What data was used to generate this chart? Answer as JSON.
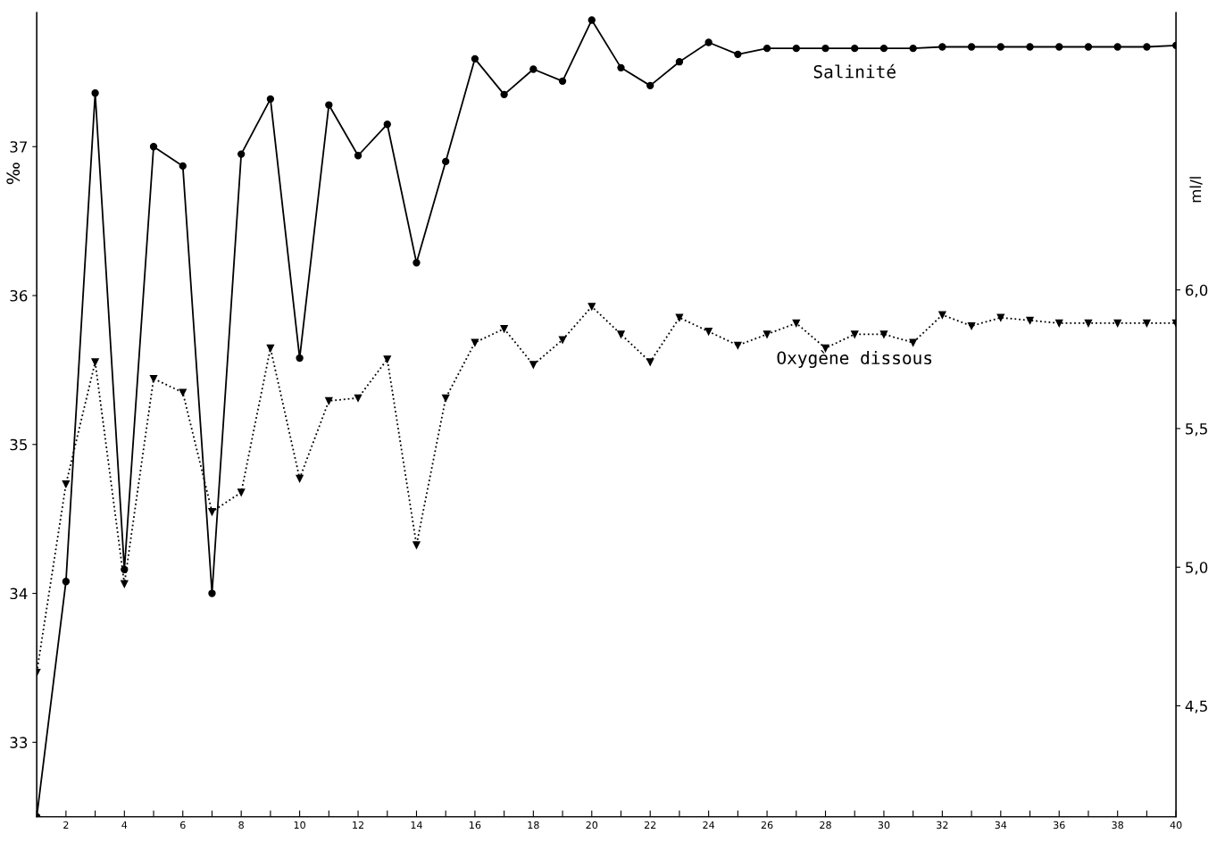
{
  "chart_data": {
    "type": "line",
    "x": [
      1,
      2,
      3,
      4,
      5,
      6,
      7,
      8,
      9,
      10,
      11,
      12,
      13,
      14,
      15,
      16,
      17,
      18,
      19,
      20,
      21,
      22,
      23,
      24,
      25,
      26,
      27,
      28,
      29,
      30,
      31,
      32,
      33,
      34,
      35,
      36,
      37,
      38,
      39,
      40
    ],
    "series": [
      {
        "name": "Salinité",
        "color": "#000000",
        "marker": "circle",
        "line_style": "solid",
        "values": [
          32.5,
          34.08,
          37.36,
          34.16,
          37.0,
          36.87,
          34.0,
          36.95,
          37.32,
          35.58,
          37.28,
          36.94,
          37.15,
          36.22,
          36.9,
          37.59,
          37.35,
          37.52,
          37.44,
          37.85,
          37.53,
          37.41,
          37.57,
          37.7,
          37.62,
          37.66,
          37.66,
          37.66,
          37.66,
          37.66,
          37.66,
          37.67,
          37.67,
          37.67,
          37.67,
          37.67,
          37.67,
          37.67,
          37.67,
          37.68
        ]
      },
      {
        "name": "Oxygène dissous",
        "color": "#000000",
        "marker": "triangle",
        "line_style": "dotted",
        "axis": "y2",
        "values": [
          4.62,
          5.3,
          5.74,
          4.94,
          5.68,
          5.63,
          5.2,
          5.27,
          5.79,
          5.32,
          5.6,
          5.61,
          5.75,
          5.08,
          5.61,
          5.81,
          5.86,
          5.73,
          5.82,
          5.94,
          5.84,
          5.74,
          5.9,
          5.85,
          5.8,
          5.84,
          5.88,
          5.79,
          5.84,
          5.84,
          5.81,
          5.91,
          5.87,
          5.9,
          5.89,
          5.88,
          5.88,
          5.88,
          5.88,
          5.88
        ]
      }
    ],
    "ylabel": "‰",
    "y2label": "ml/l",
    "xlim": [
      1,
      40
    ],
    "xticks": [
      {
        "value": 1,
        "label": null
      },
      2,
      {
        "value": 3,
        "label": null
      },
      4,
      {
        "value": 5,
        "label": null
      },
      6,
      {
        "value": 7,
        "label": null
      },
      8,
      {
        "value": 9,
        "label": null
      },
      10,
      {
        "value": 11,
        "label": null
      },
      12,
      {
        "value": 13,
        "label": null
      },
      14,
      {
        "value": 15,
        "label": null
      },
      16,
      {
        "value": 17,
        "label": null
      },
      18,
      {
        "value": 19,
        "label": null
      },
      20,
      {
        "value": 21,
        "label": null
      },
      22,
      {
        "value": 23,
        "label": null
      },
      24,
      {
        "value": 25,
        "label": null
      },
      26,
      {
        "value": 27,
        "label": null
      },
      28,
      {
        "value": 29,
        "label": null
      },
      30,
      {
        "value": 31,
        "label": null
      },
      32,
      {
        "value": 33,
        "label": null
      },
      34,
      {
        "value": 35,
        "label": null
      },
      36,
      {
        "value": 37,
        "label": null
      },
      38,
      {
        "value": 39,
        "label": null
      },
      40
    ],
    "ylim": [
      32.5,
      37.9
    ],
    "yticks": [
      33,
      34,
      35,
      36,
      37
    ],
    "y2lim": [
      4.1,
      7.0
    ],
    "y2ticks": [
      {
        "value": 4.5,
        "label": "4,5"
      },
      {
        "value": 5.0,
        "label": "5,0"
      },
      {
        "value": 5.5,
        "label": "5,5"
      },
      {
        "value": 6.0,
        "label": "6,0"
      }
    ],
    "grid": false,
    "legend": false
  }
}
